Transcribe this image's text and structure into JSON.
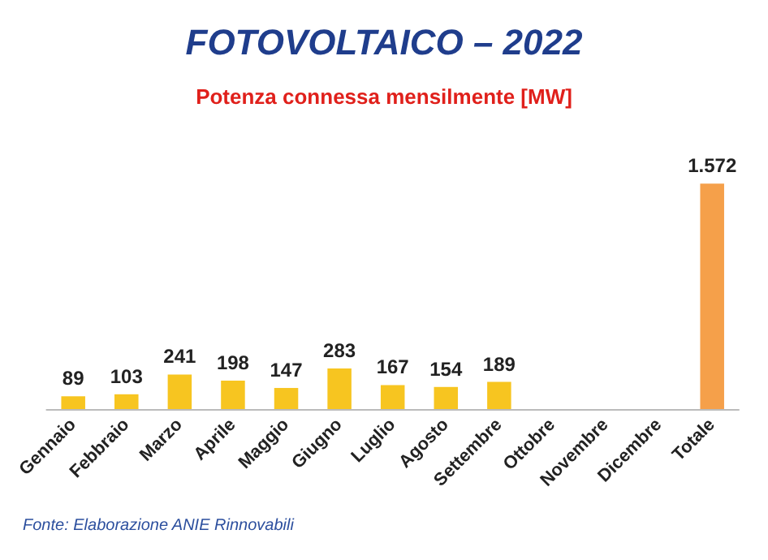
{
  "chart_data": {
    "type": "bar",
    "title": "FOTOVOLTAICO – 2022",
    "subtitle": "Potenza connessa mensilmente [MW]",
    "categories": [
      "Gennaio",
      "Febbraio",
      "Marzo",
      "Aprile",
      "Maggio",
      "Giugno",
      "Luglio",
      "Agosto",
      "Settembre",
      "Ottobre",
      "Novembre",
      "Dicembre",
      "Totale"
    ],
    "values": [
      89,
      103,
      241,
      198,
      147,
      283,
      167,
      154,
      189,
      null,
      null,
      null,
      1572
    ],
    "colors": [
      "#f7c520",
      "#f7c520",
      "#f7c520",
      "#f7c520",
      "#f7c520",
      "#f7c520",
      "#f7c520",
      "#f7c520",
      "#f7c520",
      "#f7c520",
      "#f7c520",
      "#f7c520",
      "#f5a04a"
    ],
    "value_labels": [
      "89",
      "103",
      "241",
      "198",
      "147",
      "283",
      "167",
      "154",
      "189",
      null,
      null,
      null,
      "1.572"
    ],
    "annotations": [
      "Fonte: Elaborazione ANIE Rinnovabili"
    ],
    "tick_labels": "x"
  }
}
